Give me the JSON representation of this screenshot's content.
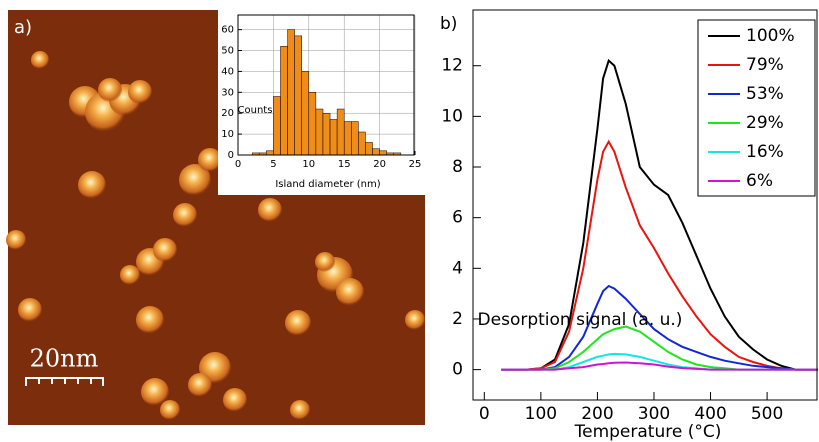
{
  "labels": {
    "a": "a)",
    "b": "b)",
    "scale_bar": "20nm"
  },
  "chart_data": [
    {
      "type": "histogram",
      "xlabel": "Island diameter (nm)",
      "ylabel": "Counts",
      "color": "#f08c1a",
      "bins": [
        2,
        3,
        4,
        5,
        6,
        7,
        8,
        9,
        10,
        11,
        12,
        13,
        14,
        15,
        16,
        17,
        18,
        19,
        20,
        21,
        22,
        23
      ],
      "values": [
        1,
        1,
        2,
        28,
        52,
        60,
        57,
        40,
        30,
        22,
        20,
        17,
        22,
        16,
        16,
        11,
        6,
        3,
        2,
        1,
        1
      ],
      "xlim": [
        0,
        25
      ],
      "xticks": [
        0,
        5,
        10,
        15,
        20,
        25
      ],
      "ylim": [
        0,
        67
      ],
      "yticks": [
        0,
        10,
        20,
        30,
        40,
        50,
        60
      ],
      "grid": true
    },
    {
      "type": "line",
      "xlabel": "Temperature (°C)",
      "ylabel": "Desorption signal (a. u.)",
      "legend": "upper right",
      "x": [
        30,
        50,
        75,
        100,
        125,
        150,
        175,
        200,
        210,
        220,
        230,
        250,
        275,
        300,
        325,
        350,
        375,
        400,
        425,
        450,
        475,
        500,
        525,
        550,
        575,
        590
      ],
      "series": [
        {
          "name": "100%",
          "color": "#000000",
          "values": [
            0,
            0,
            0,
            0.05,
            0.4,
            1.8,
            5,
            9.5,
            11.5,
            12.2,
            12,
            10.5,
            8,
            7.3,
            6.9,
            5.8,
            4.5,
            3.2,
            2.1,
            1.3,
            0.8,
            0.4,
            0.15,
            0,
            0,
            0
          ]
        },
        {
          "name": "79%",
          "color": "#e8140f",
          "values": [
            0,
            0,
            0,
            0.05,
            0.3,
            1.5,
            4,
            7.5,
            8.6,
            9,
            8.6,
            7.2,
            5.7,
            4.8,
            3.8,
            2.9,
            2.1,
            1.4,
            0.9,
            0.5,
            0.3,
            0.15,
            0.05,
            0,
            0,
            0
          ]
        },
        {
          "name": "53%",
          "color": "#1428d2",
          "values": [
            0,
            0,
            0,
            0,
            0.1,
            0.5,
            1.3,
            2.6,
            3.1,
            3.3,
            3.2,
            2.8,
            2.2,
            1.6,
            1.2,
            0.9,
            0.7,
            0.5,
            0.35,
            0.25,
            0.15,
            0.1,
            0.05,
            0,
            0,
            0
          ]
        },
        {
          "name": "29%",
          "color": "#1ee61e",
          "values": [
            0,
            0,
            0,
            0,
            0.05,
            0.3,
            0.7,
            1.2,
            1.4,
            1.5,
            1.6,
            1.7,
            1.5,
            1.1,
            0.7,
            0.4,
            0.2,
            0.1,
            0.05,
            0,
            0,
            0,
            0,
            0,
            0,
            0
          ]
        },
        {
          "name": "16%",
          "color": "#14e6e6",
          "values": [
            0,
            0,
            0,
            0,
            0,
            0.1,
            0.3,
            0.5,
            0.55,
            0.6,
            0.62,
            0.6,
            0.5,
            0.35,
            0.2,
            0.1,
            0.05,
            0,
            0,
            0,
            0,
            0,
            0,
            0,
            0,
            0
          ]
        },
        {
          "name": "6%",
          "color": "#d214d2",
          "values": [
            0,
            0,
            0,
            0,
            0,
            0.05,
            0.1,
            0.2,
            0.22,
            0.25,
            0.27,
            0.28,
            0.25,
            0.2,
            0.12,
            0.06,
            0.03,
            0,
            0,
            0,
            0,
            0,
            0,
            0,
            0,
            0
          ]
        }
      ],
      "xlim": [
        -20,
        590
      ],
      "xticks": [
        0,
        100,
        200,
        300,
        400,
        500
      ],
      "ylim": [
        -1.2,
        14.2
      ],
      "yticks": [
        0,
        2,
        4,
        6,
        8,
        10,
        12
      ]
    }
  ]
}
